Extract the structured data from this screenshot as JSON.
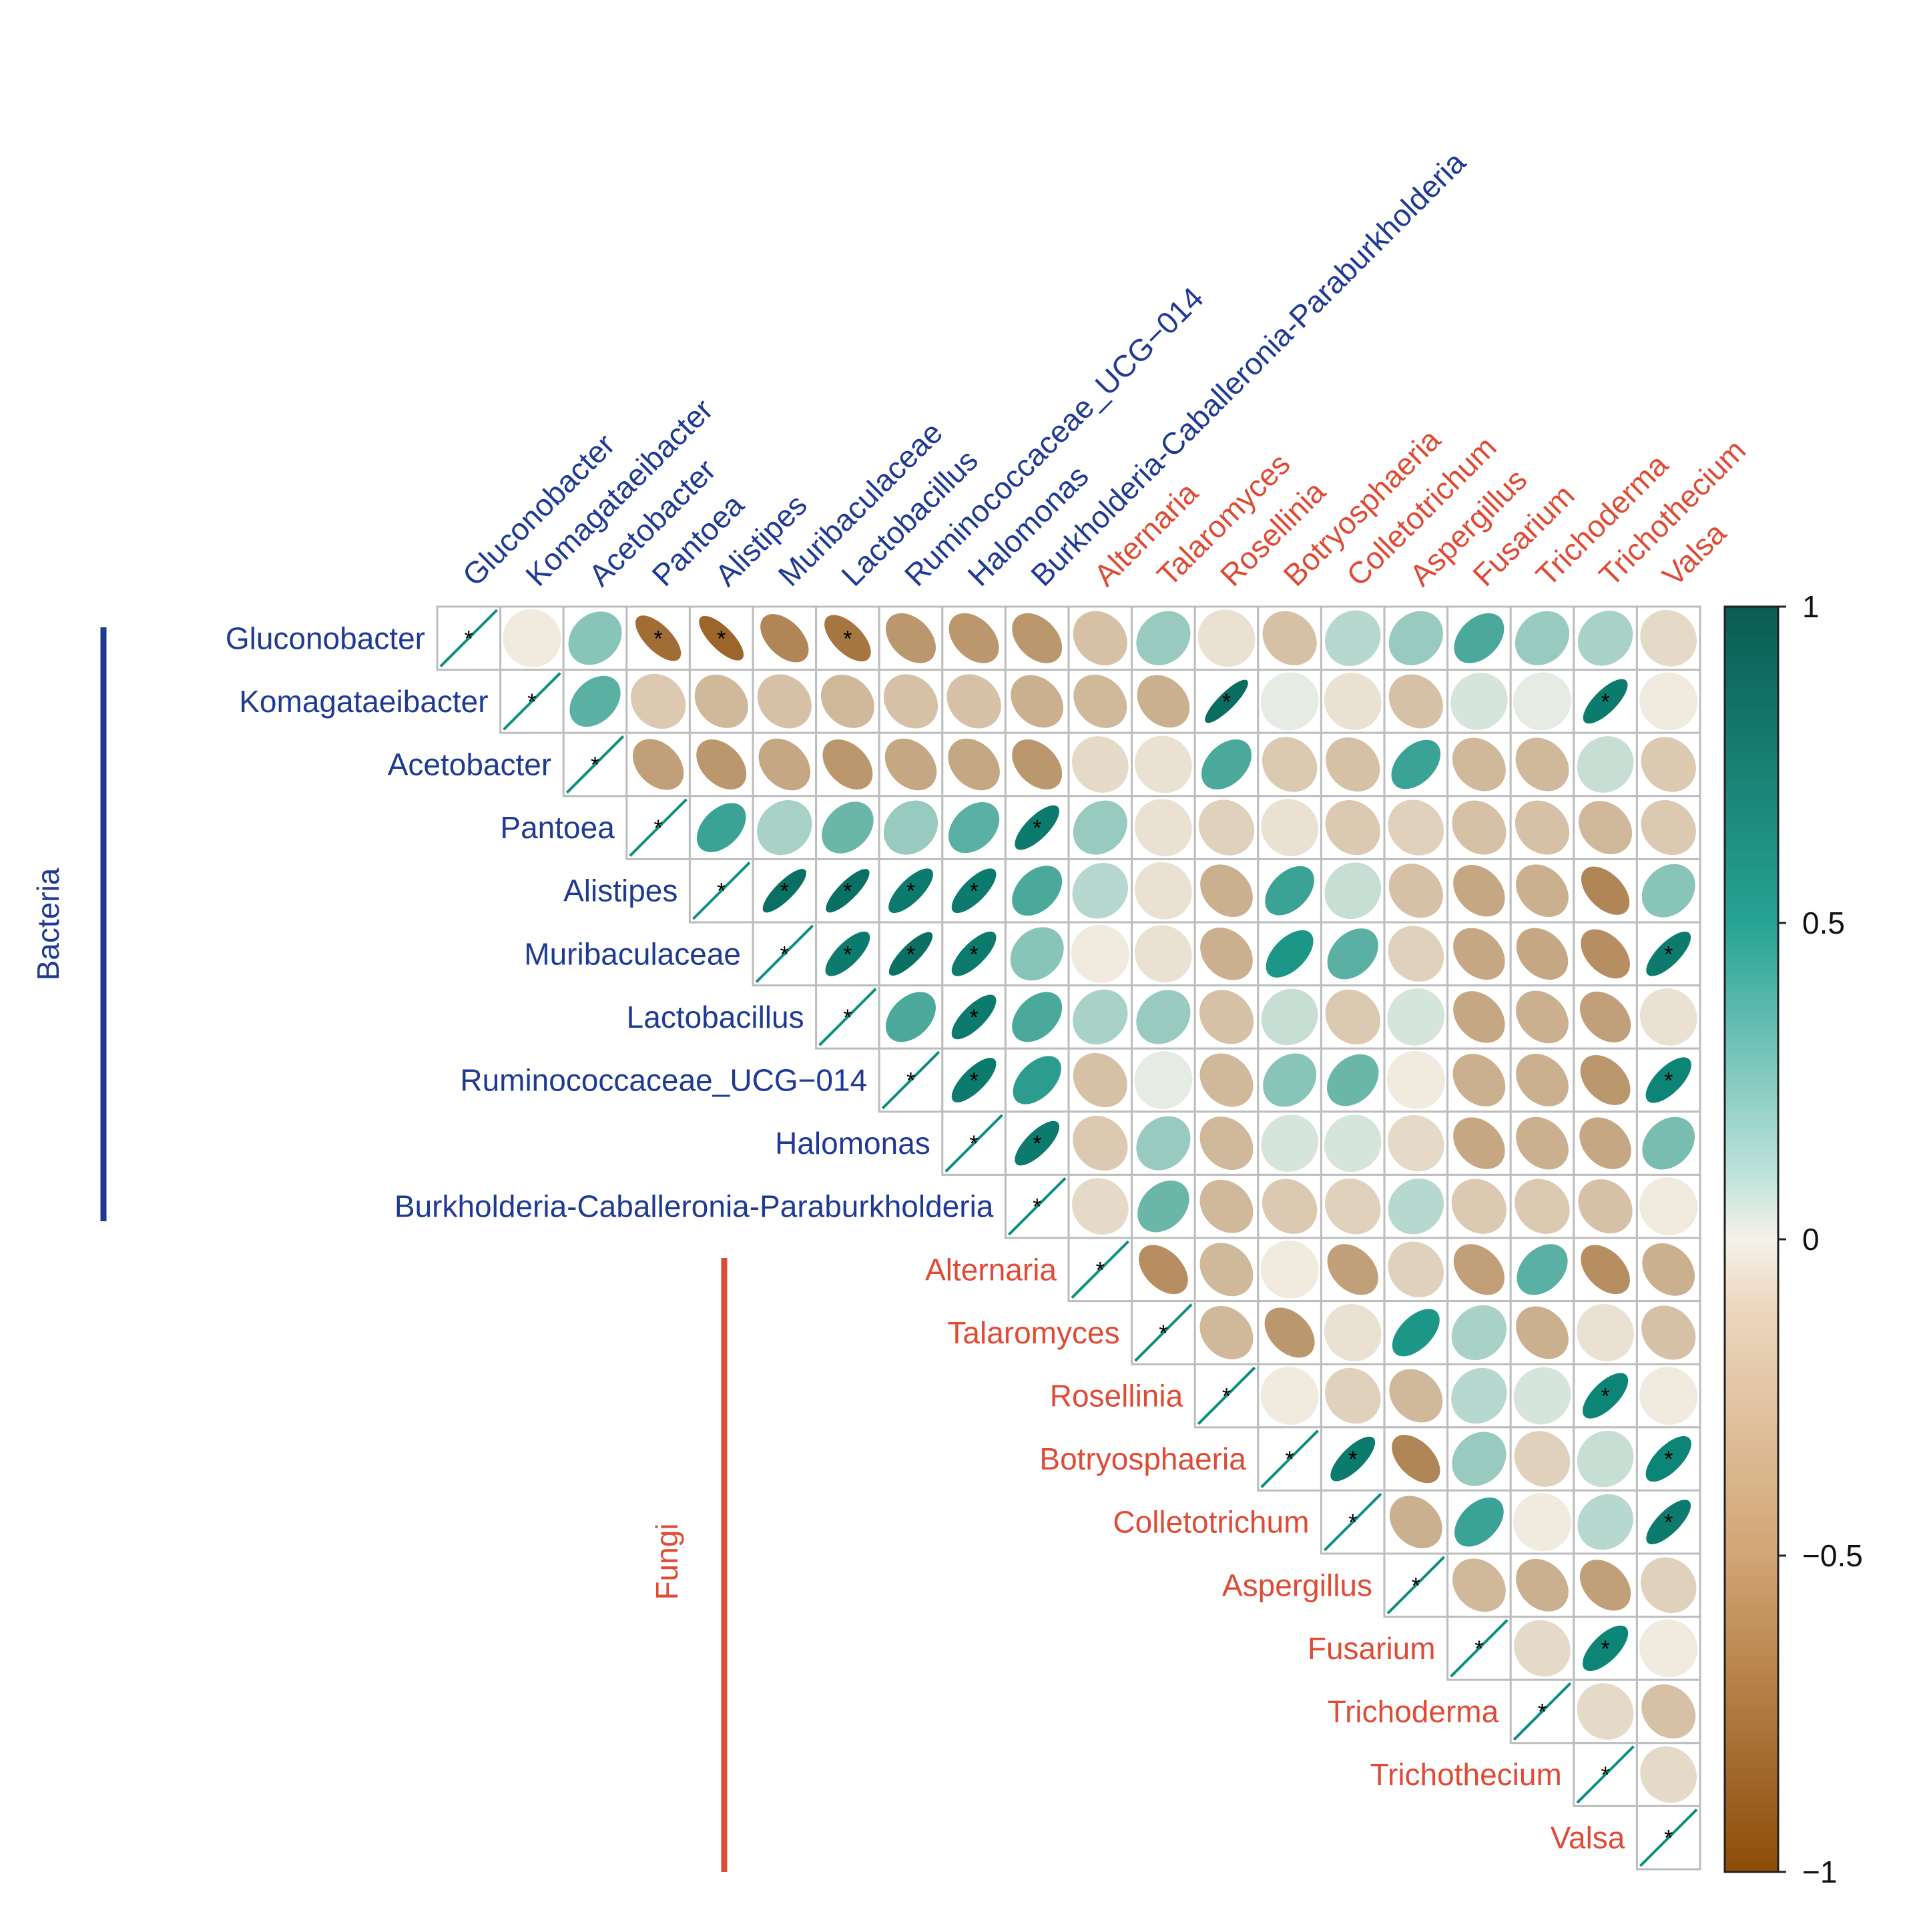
{
  "chart_data": {
    "type": "heatmap",
    "variant": "upper-triangular correlation matrix (ellipse glyphs)",
    "title": "",
    "labels": [
      "Gluconobacter",
      "Komagataeibacter",
      "Acetobacter",
      "Pantoea",
      "Alistipes",
      "Muribaculaceae",
      "Lactobacillus",
      "Ruminococcaceae_UCG−014",
      "Halomonas",
      "Burkholderia-Caballeronia-Paraburkholderia",
      "Alternaria",
      "Talaromyces",
      "Rosellinia",
      "Botryosphaeria",
      "Colletotrichum",
      "Aspergillus",
      "Fusarium",
      "Trichoderma",
      "Trichothecium",
      "Valsa"
    ],
    "groups": [
      {
        "name": "Bacteria",
        "start": 0,
        "end": 9,
        "color": "#1f3a93"
      },
      {
        "name": "Fungi",
        "start": 10,
        "end": 19,
        "color": "#e04b35"
      }
    ],
    "significance_marker": "*",
    "matrix": [
      [
        1.0,
        -0.05,
        0.35,
        -0.8,
        -0.85,
        -0.65,
        -0.75,
        -0.55,
        -0.55,
        -0.55,
        -0.3,
        0.3,
        -0.1,
        -0.3,
        0.2,
        0.3,
        0.55,
        0.3,
        0.25,
        -0.15
      ],
      [
        null,
        1.0,
        0.5,
        -0.25,
        -0.35,
        -0.3,
        -0.35,
        -0.3,
        -0.3,
        -0.4,
        -0.35,
        -0.4,
        0.92,
        0.05,
        -0.1,
        -0.3,
        0.1,
        0.05,
        0.85,
        -0.05
      ],
      [
        null,
        null,
        1.0,
        -0.5,
        -0.55,
        -0.45,
        -0.55,
        -0.45,
        -0.45,
        -0.55,
        -0.15,
        -0.1,
        0.55,
        -0.25,
        -0.3,
        0.6,
        -0.35,
        -0.35,
        0.15,
        -0.25
      ],
      [
        null,
        null,
        null,
        1.0,
        0.6,
        0.25,
        0.45,
        0.3,
        0.5,
        0.85,
        0.3,
        -0.1,
        -0.2,
        -0.1,
        -0.25,
        -0.2,
        -0.3,
        -0.3,
        -0.35,
        -0.25
      ],
      [
        null,
        null,
        null,
        null,
        1.0,
        0.9,
        0.9,
        0.85,
        0.85,
        0.55,
        0.2,
        -0.1,
        -0.4,
        0.6,
        0.15,
        -0.3,
        -0.45,
        -0.4,
        -0.65,
        0.35
      ],
      [
        null,
        null,
        null,
        null,
        null,
        1.0,
        0.85,
        0.9,
        0.85,
        0.35,
        -0.05,
        -0.1,
        -0.4,
        0.7,
        0.5,
        -0.2,
        -0.45,
        -0.45,
        -0.6,
        0.85
      ],
      [
        null,
        null,
        null,
        null,
        null,
        null,
        1.0,
        0.55,
        0.85,
        0.55,
        0.25,
        0.3,
        -0.3,
        0.15,
        -0.25,
        0.1,
        -0.45,
        -0.4,
        -0.5,
        -0.1
      ],
      [
        null,
        null,
        null,
        null,
        null,
        null,
        null,
        1.0,
        0.85,
        0.65,
        -0.3,
        0.05,
        -0.35,
        0.35,
        0.45,
        -0.05,
        -0.4,
        -0.4,
        -0.55,
        0.8
      ],
      [
        null,
        null,
        null,
        null,
        null,
        null,
        null,
        null,
        1.0,
        0.85,
        -0.25,
        0.3,
        -0.35,
        0.1,
        0.1,
        -0.15,
        -0.45,
        -0.4,
        -0.45,
        0.4
      ],
      [
        null,
        null,
        null,
        null,
        null,
        null,
        null,
        null,
        null,
        1.0,
        -0.15,
        0.45,
        -0.35,
        -0.25,
        -0.2,
        0.2,
        -0.25,
        -0.25,
        -0.3,
        -0.05
      ],
      [
        null,
        null,
        null,
        null,
        null,
        null,
        null,
        null,
        null,
        null,
        1.0,
        -0.6,
        -0.35,
        -0.05,
        -0.5,
        -0.2,
        -0.5,
        0.5,
        -0.6,
        -0.4
      ],
      [
        null,
        null,
        null,
        null,
        null,
        null,
        null,
        null,
        null,
        null,
        null,
        1.0,
        -0.35,
        -0.55,
        -0.1,
        0.7,
        0.25,
        -0.4,
        -0.1,
        -0.3
      ],
      [
        null,
        null,
        null,
        null,
        null,
        null,
        null,
        null,
        null,
        null,
        null,
        null,
        1.0,
        -0.05,
        -0.2,
        -0.35,
        0.2,
        0.1,
        0.8,
        -0.05
      ],
      [
        null,
        null,
        null,
        null,
        null,
        null,
        null,
        null,
        null,
        null,
        null,
        null,
        null,
        1.0,
        0.85,
        -0.65,
        0.3,
        -0.2,
        0.15,
        0.8
      ],
      [
        null,
        null,
        null,
        null,
        null,
        null,
        null,
        null,
        null,
        null,
        null,
        null,
        null,
        null,
        1.0,
        -0.4,
        0.6,
        -0.05,
        0.2,
        0.85
      ],
      [
        null,
        null,
        null,
        null,
        null,
        null,
        null,
        null,
        null,
        null,
        null,
        null,
        null,
        null,
        null,
        1.0,
        -0.35,
        -0.4,
        -0.5,
        -0.2
      ],
      [
        null,
        null,
        null,
        null,
        null,
        null,
        null,
        null,
        null,
        null,
        null,
        null,
        null,
        null,
        null,
        null,
        1.0,
        -0.15,
        0.8,
        -0.05
      ],
      [
        null,
        null,
        null,
        null,
        null,
        null,
        null,
        null,
        null,
        null,
        null,
        null,
        null,
        null,
        null,
        null,
        null,
        1.0,
        -0.15,
        -0.3
      ],
      [
        null,
        null,
        null,
        null,
        null,
        null,
        null,
        null,
        null,
        null,
        null,
        null,
        null,
        null,
        null,
        null,
        null,
        null,
        1.0,
        -0.15
      ],
      [
        null,
        null,
        null,
        null,
        null,
        null,
        null,
        null,
        null,
        null,
        null,
        null,
        null,
        null,
        null,
        null,
        null,
        null,
        null,
        1.0
      ]
    ],
    "significant": [
      [
        0,
        0
      ],
      [
        0,
        3
      ],
      [
        0,
        4
      ],
      [
        0,
        6
      ],
      [
        1,
        1
      ],
      [
        1,
        12
      ],
      [
        1,
        18
      ],
      [
        2,
        2
      ],
      [
        3,
        3
      ],
      [
        3,
        9
      ],
      [
        4,
        4
      ],
      [
        4,
        5
      ],
      [
        4,
        6
      ],
      [
        4,
        7
      ],
      [
        4,
        8
      ],
      [
        5,
        5
      ],
      [
        5,
        6
      ],
      [
        5,
        7
      ],
      [
        5,
        8
      ],
      [
        5,
        19
      ],
      [
        6,
        6
      ],
      [
        6,
        8
      ],
      [
        7,
        7
      ],
      [
        7,
        8
      ],
      [
        7,
        19
      ],
      [
        8,
        8
      ],
      [
        8,
        9
      ],
      [
        9,
        9
      ],
      [
        10,
        10
      ],
      [
        11,
        11
      ],
      [
        12,
        12
      ],
      [
        12,
        18
      ],
      [
        13,
        13
      ],
      [
        13,
        14
      ],
      [
        13,
        19
      ],
      [
        14,
        14
      ],
      [
        14,
        19
      ],
      [
        15,
        15
      ],
      [
        16,
        16
      ],
      [
        16,
        18
      ],
      [
        17,
        17
      ],
      [
        18,
        18
      ],
      [
        19,
        19
      ]
    ],
    "colorbar": {
      "range": [
        -1,
        1
      ],
      "ticks": [
        "1",
        "0.5",
        "0",
        "−0.5",
        "−1"
      ],
      "colors": {
        "neg": "#8c4c08",
        "mid": "#f5f2ea",
        "pos": "#0d8f80",
        "max": "#0a5c52"
      }
    }
  }
}
